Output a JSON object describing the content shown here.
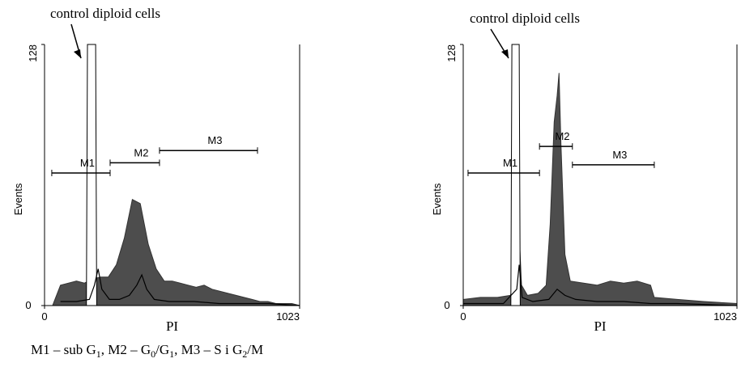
{
  "chart_data": [
    {
      "type": "histogram",
      "x_label": "PI",
      "y_label": "Events",
      "annotation": "control diploid cells",
      "xlim": [
        0,
        1023
      ],
      "ylim": [
        0,
        128
      ],
      "xticks": [
        0,
        1023
      ],
      "yticks": [
        0,
        128
      ],
      "series": [
        {
          "color": "#333333",
          "fill": "#4d4d4d",
          "x": [
            0,
            32,
            64,
            96,
            128,
            160,
            192,
            224,
            256,
            288,
            320,
            352,
            384,
            416,
            448,
            480,
            512,
            544,
            576,
            608,
            640,
            672,
            704,
            736,
            768,
            800,
            832,
            864,
            896,
            928,
            960,
            992,
            1023
          ],
          "values": [
            0,
            0,
            10,
            11,
            12,
            11,
            13,
            14,
            14,
            20,
            33,
            52,
            50,
            30,
            18,
            12,
            12,
            11,
            10,
            9,
            10,
            8,
            7,
            6,
            5,
            4,
            3,
            2,
            2,
            1,
            1,
            1,
            0
          ]
        },
        {
          "color": "#000000",
          "fill": "#ffffff",
          "x": [
            168,
            172,
            205,
            209
          ],
          "values": [
            0,
            128,
            128,
            0
          ]
        },
        {
          "color": "#000000",
          "fill": null,
          "x": [
            64,
            128,
            180,
            200,
            215,
            230,
            260,
            300,
            340,
            370,
            390,
            410,
            440,
            500,
            600,
            700,
            800,
            900,
            1023
          ],
          "values": [
            2,
            2,
            3,
            10,
            18,
            8,
            3,
            3,
            5,
            10,
            15,
            8,
            3,
            2,
            2,
            1,
            1,
            1,
            0
          ]
        }
      ],
      "markers": [
        {
          "label": "M1",
          "range": [
            29,
            263
          ],
          "level": 65
        },
        {
          "label": "M2",
          "range": [
            263,
            461
          ],
          "level": 70
        },
        {
          "label": "M3",
          "range": [
            461,
            854
          ],
          "level": 76
        }
      ]
    },
    {
      "type": "histogram",
      "x_label": "PI",
      "y_label": "Events",
      "annotation": "control diploid cells",
      "xlim": [
        0,
        1023
      ],
      "ylim": [
        0,
        128
      ],
      "xticks": [
        0,
        1023
      ],
      "yticks": [
        0,
        128
      ],
      "series": [
        {
          "color": "#333333",
          "fill": "#4d4d4d",
          "x": [
            0,
            64,
            128,
            176,
            192,
            200,
            209,
            218,
            240,
            280,
            310,
            325,
            340,
            351,
            358,
            365,
            380,
            400,
            450,
            500,
            550,
            600,
            650,
            700,
            714,
            800,
            900,
            1023
          ],
          "values": [
            3,
            4,
            4,
            5,
            10,
            25,
            35,
            10,
            5,
            6,
            10,
            40,
            90,
            103,
            114,
            80,
            25,
            12,
            11,
            10,
            12,
            11,
            12,
            10,
            4,
            3,
            2,
            1
          ]
        },
        {
          "color": "#000000",
          "fill": "#ffffff",
          "x": [
            178,
            182,
            209,
            213
          ],
          "values": [
            0,
            128,
            128,
            0
          ]
        },
        {
          "color": "#000000",
          "fill": null,
          "x": [
            0,
            150,
            200,
            209,
            220,
            260,
            320,
            351,
            380,
            420,
            500,
            600,
            700,
            800,
            1023
          ],
          "values": [
            1,
            1,
            8,
            20,
            4,
            2,
            3,
            8,
            5,
            3,
            2,
            2,
            1,
            1,
            0
          ]
        }
      ],
      "markers": [
        {
          "label": "M1",
          "range": [
            18,
            285
          ],
          "level": 65
        },
        {
          "label": "M2",
          "range": [
            285,
            408
          ],
          "level": 78
        },
        {
          "label": "M3",
          "range": [
            408,
            714
          ],
          "level": 69
        }
      ]
    }
  ],
  "caption": [
    {
      "text": "M1 – sub G"
    },
    {
      "sub": "1"
    },
    {
      "text": ", M2 –  G"
    },
    {
      "sub": "0"
    },
    {
      "text": "/G"
    },
    {
      "sub": "1"
    },
    {
      "text": ", M3 – S i G"
    },
    {
      "sub": "2"
    },
    {
      "text": "/M"
    }
  ]
}
